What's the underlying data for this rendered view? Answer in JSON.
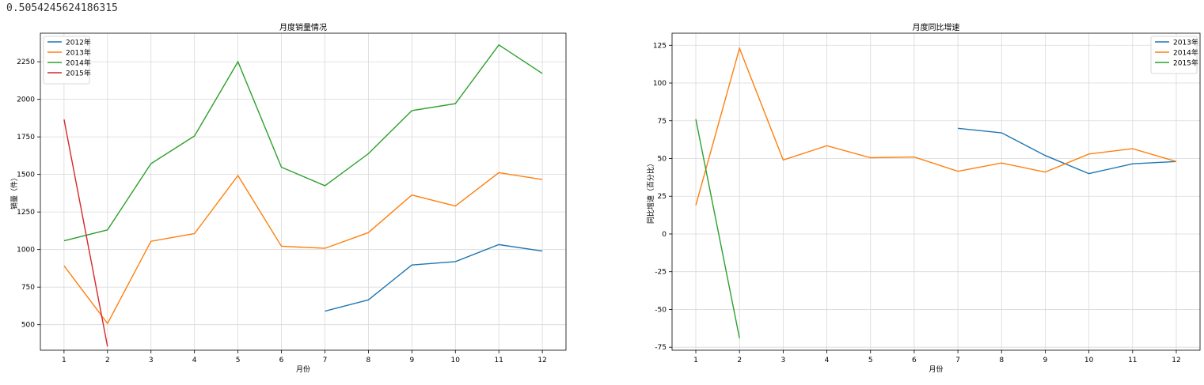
{
  "output_text": "0.5054245624186315",
  "chart_data": [
    {
      "type": "line",
      "title": "月度销量情况",
      "xlabel": "月份",
      "ylabel": "销量（件）",
      "categories": [
        "1",
        "2",
        "3",
        "4",
        "5",
        "6",
        "7",
        "8",
        "9",
        "10",
        "11",
        "12"
      ],
      "yticks": [
        500,
        750,
        1000,
        1250,
        1500,
        1750,
        2000,
        2250
      ],
      "ylim": [
        330,
        2440
      ],
      "grid": true,
      "legend": "top-left",
      "series": [
        {
          "name": "2012年",
          "color": "#1f77b4",
          "values": [
            null,
            null,
            null,
            null,
            null,
            null,
            590,
            665,
            897,
            920,
            1033,
            990
          ]
        },
        {
          "name": "2013年",
          "color": "#ff7f0e",
          "values": [
            892,
            508,
            1055,
            1106,
            1493,
            1022,
            1008,
            1113,
            1363,
            1290,
            1512,
            1466
          ]
        },
        {
          "name": "2014年",
          "color": "#2ca02c",
          "values": [
            1058,
            1131,
            1572,
            1756,
            2250,
            1548,
            1425,
            1638,
            1925,
            1971,
            2362,
            2172
          ]
        },
        {
          "name": "2015年",
          "color": "#d62728",
          "values": [
            1866,
            355,
            null,
            null,
            null,
            null,
            null,
            null,
            null,
            null,
            null,
            null
          ]
        }
      ]
    },
    {
      "type": "line",
      "title": "月度同比增速",
      "xlabel": "月份",
      "ylabel": "同比增速（百分比）",
      "categories": [
        "1",
        "2",
        "3",
        "4",
        "5",
        "6",
        "7",
        "8",
        "9",
        "10",
        "11",
        "12"
      ],
      "yticks": [
        -75,
        -50,
        -25,
        0,
        25,
        50,
        75,
        100,
        125
      ],
      "ylim": [
        -77,
        133
      ],
      "grid": true,
      "legend": "top-right",
      "series": [
        {
          "name": "2013年",
          "color": "#1f77b4",
          "values": [
            null,
            null,
            null,
            null,
            null,
            null,
            70,
            67,
            52,
            40,
            46.5,
            48
          ]
        },
        {
          "name": "2014年",
          "color": "#ff7f0e",
          "values": [
            19,
            123,
            49,
            58.5,
            50.5,
            51,
            41.5,
            47,
            41,
            53,
            56.5,
            48
          ]
        },
        {
          "name": "2015年",
          "color": "#2ca02c",
          "values": [
            76,
            -69,
            null,
            null,
            null,
            null,
            null,
            null,
            null,
            null,
            null,
            null
          ]
        }
      ]
    }
  ]
}
